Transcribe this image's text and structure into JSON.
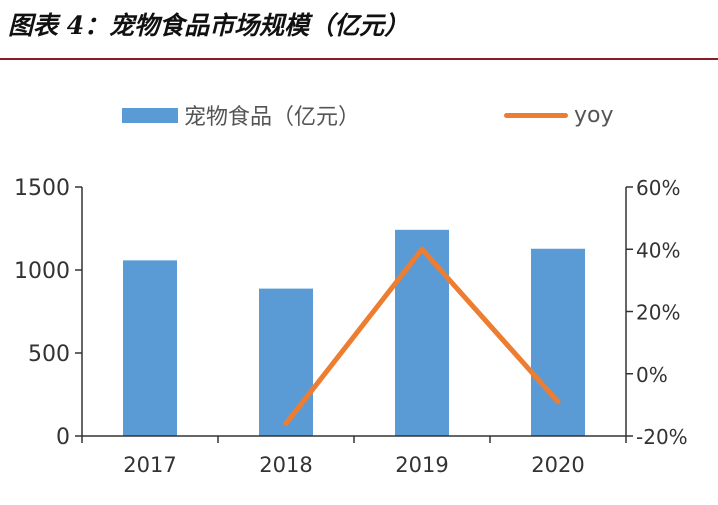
{
  "header": {
    "title": "图表 4：宠物食品市场规模（亿元）"
  },
  "chart_data": {
    "type": "bar",
    "categories": [
      "2017",
      "2018",
      "2019",
      "2020"
    ],
    "series": [
      {
        "name": "宠物食品（亿元）",
        "type": "bar",
        "axis": "left",
        "values": [
          1058,
          888,
          1242,
          1128
        ],
        "color": "#5b9bd5"
      },
      {
        "name": "yoy",
        "type": "line",
        "axis": "right",
        "values": [
          null,
          -16,
          40,
          -9
        ],
        "color": "#ed7d31"
      }
    ],
    "y_left": {
      "ylim": [
        0,
        1500
      ],
      "ticks": [
        "0",
        "500",
        "1000",
        "1500"
      ],
      "tick_values": [
        0,
        500,
        1000,
        1500
      ]
    },
    "y_right": {
      "ylim": [
        -20,
        60
      ],
      "ticks": [
        "-20%",
        "0%",
        "20%",
        "40%",
        "60%"
      ],
      "tick_values": [
        -20,
        0,
        20,
        40,
        60
      ]
    },
    "grid": false,
    "legend_position": "top"
  }
}
